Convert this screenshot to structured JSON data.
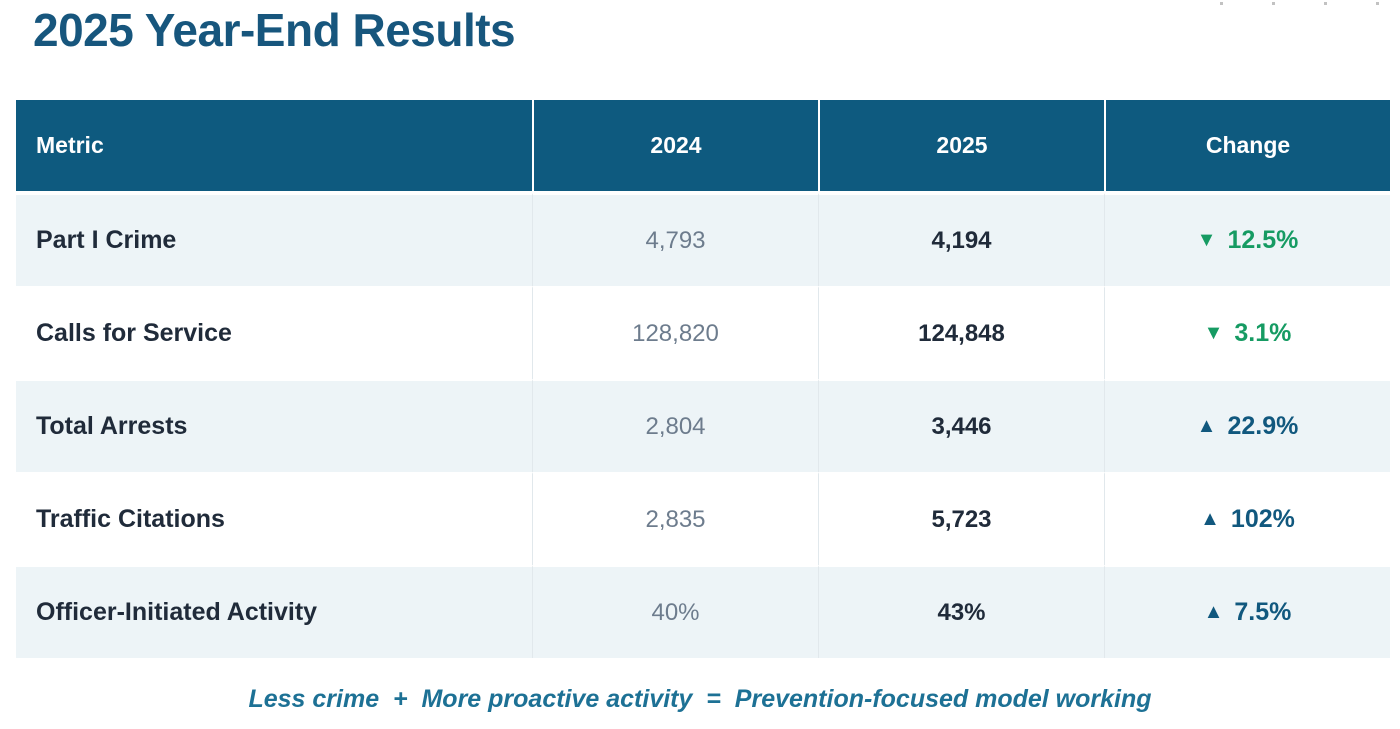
{
  "page": {
    "title": "2025 Year-End Results",
    "footer": "Less crime  +  More proactive activity  =  Prevention-focused model working"
  },
  "colors": {
    "title_text": "#17567d",
    "header_bg": "#0e5a7f",
    "header_text": "#ffffff",
    "row_alt_bg": "#edf4f7",
    "metric_text": "#202b3a",
    "prev_value_text": "#6d7c8d",
    "decrease_green": "#169b63",
    "increase_blue": "#11587e",
    "footer_text": "#1d7195"
  },
  "table": {
    "columns": [
      "Metric",
      "2024",
      "2025",
      "Change"
    ],
    "rows": [
      {
        "metric": "Part I Crime",
        "y2024": "4,793",
        "y2025": "4,194",
        "change": {
          "arrow": "▼",
          "value": "12.5%",
          "direction": "down"
        }
      },
      {
        "metric": "Calls for Service",
        "y2024": "128,820",
        "y2025": "124,848",
        "change": {
          "arrow": "▼",
          "value": "3.1%",
          "direction": "down"
        }
      },
      {
        "metric": "Total Arrests",
        "y2024": "2,804",
        "y2025": "3,446",
        "change": {
          "arrow": "▲",
          "value": "22.9%",
          "direction": "up"
        }
      },
      {
        "metric": "Traffic Citations",
        "y2024": "2,835",
        "y2025": "5,723",
        "change": {
          "arrow": "▲",
          "value": "102%",
          "direction": "up"
        }
      },
      {
        "metric": "Officer-Initiated Activity",
        "y2024": "40%",
        "y2025": "43%",
        "change": {
          "arrow": "▲",
          "value": "7.5%",
          "direction": "up"
        }
      }
    ]
  }
}
